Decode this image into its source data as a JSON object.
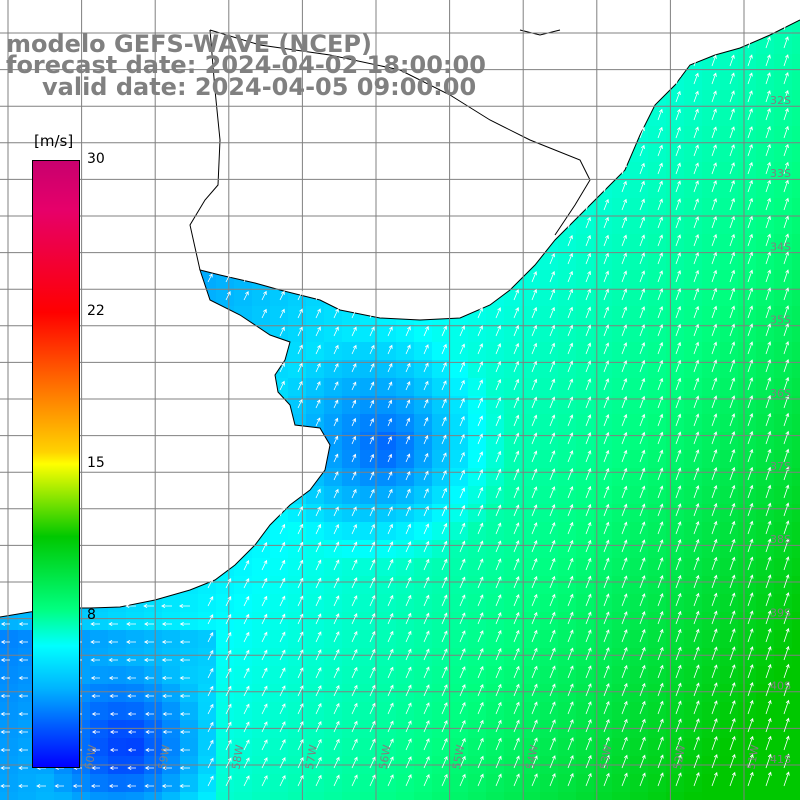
{
  "title": {
    "line1": "modelo GEFS-WAVE (NCEP)",
    "line2": "forecast date: 2024-04-02 18:00:00",
    "line3": "valid date: 2024-04-05 09:00:00"
  },
  "colorbar": {
    "unit": "[m/s]",
    "ticks": [
      {
        "label": "30",
        "value": 30
      },
      {
        "label": "22",
        "value": 22
      },
      {
        "label": "15",
        "value": 15
      },
      {
        "label": "8",
        "value": 8
      }
    ],
    "range": [
      0,
      30
    ],
    "colors": [
      "#0000ff",
      "#0050ff",
      "#00b4ff",
      "#00ffff",
      "#00ff80",
      "#00c800",
      "#ffff00",
      "#ffd200",
      "#ff7800",
      "#ff0000",
      "#e6006a",
      "#c8006e"
    ]
  },
  "map": {
    "lat_labels": [
      "32S",
      "33S",
      "34S",
      "35S",
      "36S",
      "37S",
      "38S",
      "39S",
      "40S",
      "41S"
    ],
    "lon_labels": [
      "60W",
      "59W",
      "58W",
      "57W",
      "56W",
      "55W",
      "54W",
      "53W",
      "52W",
      "51W"
    ],
    "land_color": "#ffffff",
    "coast_color": "#000000",
    "grid_color": "#808080",
    "arrow_color": "#ffffff"
  }
}
